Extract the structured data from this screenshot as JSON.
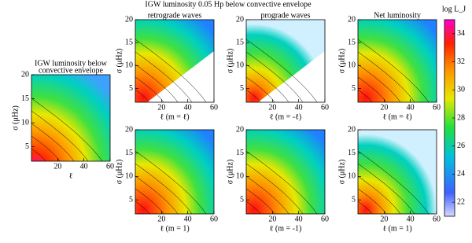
{
  "figure_title": "IGW luminosity 0.05 Hp below convective envelope",
  "panels": [
    {
      "title_lines": [
        "IGW luminosity below",
        "convective envelope"
      ],
      "xlabel": "ℓ",
      "ylabel": "σ (μHz)",
      "xlim": [
        0,
        60
      ],
      "ylim": [
        2,
        20
      ],
      "xticks": [
        20,
        40,
        60
      ],
      "yticks": [
        5,
        10,
        15,
        20
      ]
    },
    {
      "title_lines": [
        "retrograde waves"
      ],
      "xlabel": "ℓ (m = ℓ)",
      "ylabel": "σ (μHz)",
      "xlim": [
        0,
        60
      ],
      "ylim": [
        2,
        20
      ],
      "xticks": [
        20,
        40,
        60
      ],
      "yticks": [
        5,
        10,
        15,
        20
      ]
    },
    {
      "title_lines": [
        "prograde waves"
      ],
      "xlabel": "ℓ (m = -ℓ)",
      "ylabel": "σ (μHz)",
      "xlim": [
        0,
        60
      ],
      "ylim": [
        2,
        20
      ],
      "xticks": [
        20,
        40,
        60
      ],
      "yticks": [
        5,
        10,
        15,
        20
      ]
    },
    {
      "title_lines": [
        "Net luminosity"
      ],
      "xlabel": "ℓ (m = ℓ)",
      "ylabel": "σ (μHz)",
      "xlim": [
        0,
        60
      ],
      "ylim": [
        2,
        20
      ],
      "xticks": [
        20,
        40,
        60
      ],
      "yticks": [
        5,
        10,
        15,
        20
      ]
    },
    {
      "xlabel": "ℓ (m = 1)",
      "ylabel": "σ (μHz)",
      "xlim": [
        0,
        60
      ],
      "ylim": [
        2,
        20
      ],
      "xticks": [
        20,
        40,
        60
      ],
      "yticks": [
        5,
        10,
        15,
        20
      ]
    },
    {
      "xlabel": "ℓ (m = -1)",
      "ylabel": "σ (μHz)",
      "xlim": [
        0,
        60
      ],
      "ylim": [
        2,
        20
      ],
      "xticks": [
        20,
        40,
        60
      ],
      "yticks": [
        5,
        10,
        15,
        20
      ]
    },
    {
      "xlabel": "ℓ (m = 1)",
      "ylabel": "σ (μHz)",
      "xlim": [
        0,
        60
      ],
      "ylim": [
        2,
        20
      ],
      "xticks": [
        20,
        40,
        60
      ],
      "yticks": [
        5,
        10,
        15,
        20
      ]
    }
  ],
  "colorbar": {
    "label": "log L_J",
    "lim": [
      21,
      35
    ],
    "ticks": [
      22,
      24,
      26,
      28,
      30,
      32,
      34
    ]
  }
}
